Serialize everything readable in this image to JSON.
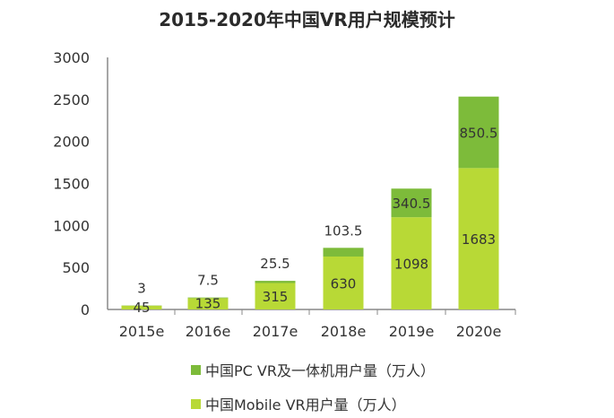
{
  "colors": {
    "pc": "#7dbb3a",
    "mobile": "#b8d936",
    "axis": "#888888"
  },
  "chart_data": {
    "type": "bar",
    "stacked": true,
    "title": "2015-2020年中国VR用户规模预计",
    "categories": [
      "2015e",
      "2016e",
      "2017e",
      "2018e",
      "2019e",
      "2020e"
    ],
    "series": [
      {
        "name": "中国Mobile VR用户量（万人）",
        "values": [
          45,
          135,
          315,
          630,
          1098,
          1683
        ],
        "color": "#b8d936"
      },
      {
        "name": "中国PC VR及一体机用户量（万人）",
        "values": [
          3,
          7.5,
          25.5,
          103.5,
          340.5,
          850.5
        ],
        "color": "#7dbb3a"
      }
    ],
    "mobile_labels": [
      "45",
      "135",
      "315",
      "630",
      "1098",
      "1683"
    ],
    "pc_labels": [
      "3",
      "7.5",
      "25.5",
      "103.5",
      "340.5",
      "850.5"
    ],
    "yticks": [
      "0",
      "500",
      "1000",
      "1500",
      "2000",
      "2500",
      "3000"
    ],
    "ylim": [
      0,
      3000
    ],
    "grid": false,
    "legend_position": "bottom"
  }
}
